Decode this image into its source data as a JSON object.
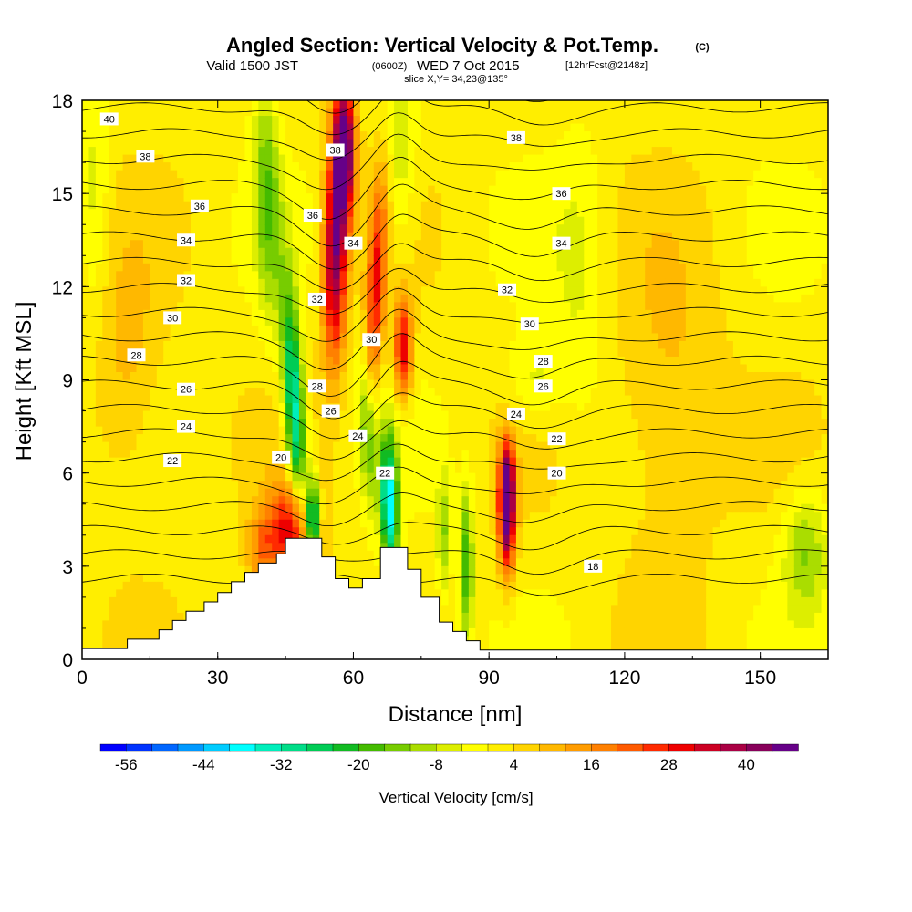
{
  "chart_data": {
    "type": "heatmap",
    "title": {
      "main": "Angled Section: Vertical Velocity & Pot.Temp.",
      "main_units": "(C)",
      "valid_prefix": "Valid 1500 JST",
      "valid_utc": "(0600Z)",
      "valid_date": "WED 7 Oct 2015",
      "forecast": "[12hrFcst@2148z]",
      "slice": "slice X,Y= 34,23@135°"
    },
    "xlabel": "Distance [nm]",
    "ylabel": "Height [Kft MSL]",
    "xlim": [
      0,
      165
    ],
    "ylim": [
      0,
      18
    ],
    "x_ticks": [
      "0",
      "30",
      "60",
      "90",
      "120",
      "150"
    ],
    "x_tick_values": [
      0,
      30,
      60,
      90,
      120,
      150
    ],
    "y_ticks": [
      "0",
      "3",
      "6",
      "9",
      "12",
      "15",
      "18"
    ],
    "y_tick_values": [
      0,
      3,
      6,
      9,
      12,
      15,
      18
    ],
    "colorbar": {
      "label": "Vertical Velocity [cm/s]",
      "tick_labels": [
        "-56",
        "-44",
        "-32",
        "-20",
        "-8",
        "4",
        "16",
        "28",
        "40"
      ],
      "tick_values": [
        -56,
        -44,
        -32,
        -20,
        -8,
        4,
        16,
        28,
        40
      ],
      "range": [
        -60,
        48
      ],
      "colors": [
        "#0000ff",
        "#0033ff",
        "#0066ff",
        "#0099ff",
        "#00ccff",
        "#00ffff",
        "#00eebb",
        "#00dd88",
        "#00cc55",
        "#11bb22",
        "#44bb00",
        "#77cc00",
        "#aadd00",
        "#ddee00",
        "#ffff00",
        "#ffee00",
        "#ffd400",
        "#ffb800",
        "#ff9c00",
        "#ff8000",
        "#ff5a00",
        "#ff2a00",
        "#ee0000",
        "#cc0022",
        "#aa0044",
        "#88005a",
        "#660088"
      ]
    },
    "terrain": [
      [
        0,
        0.35
      ],
      [
        10,
        0.35
      ],
      [
        10,
        0.65
      ],
      [
        17,
        0.65
      ],
      [
        17,
        0.95
      ],
      [
        20,
        0.95
      ],
      [
        20,
        1.25
      ],
      [
        23,
        1.25
      ],
      [
        23,
        1.55
      ],
      [
        27,
        1.55
      ],
      [
        27,
        1.85
      ],
      [
        30,
        1.85
      ],
      [
        30,
        2.15
      ],
      [
        33,
        2.15
      ],
      [
        33,
        2.5
      ],
      [
        36,
        2.5
      ],
      [
        36,
        2.8
      ],
      [
        39,
        2.8
      ],
      [
        39,
        3.1
      ],
      [
        43,
        3.1
      ],
      [
        43,
        3.4
      ],
      [
        45,
        3.4
      ],
      [
        45,
        3.9
      ],
      [
        53,
        3.9
      ],
      [
        53,
        3.3
      ],
      [
        56,
        3.3
      ],
      [
        56,
        2.6
      ],
      [
        59,
        2.6
      ],
      [
        59,
        2.3
      ],
      [
        62,
        2.3
      ],
      [
        62,
        2.6
      ],
      [
        66,
        2.6
      ],
      [
        66,
        3.6
      ],
      [
        72,
        3.6
      ],
      [
        72,
        2.9
      ],
      [
        75,
        2.9
      ],
      [
        75,
        2.0
      ],
      [
        79,
        2.0
      ],
      [
        79,
        1.2
      ],
      [
        82,
        1.2
      ],
      [
        82,
        0.9
      ],
      [
        85,
        0.9
      ],
      [
        85,
        0.6
      ],
      [
        88,
        0.6
      ],
      [
        88,
        0.3
      ],
      [
        165,
        0.3
      ],
      [
        165,
        0
      ],
      [
        0,
        0
      ]
    ],
    "updrafts": [
      {
        "x": 47,
        "y": 4.2,
        "sx": 5,
        "sy": 1.6,
        "value": 32,
        "tilt": 0
      },
      {
        "x": 56,
        "y": 13,
        "sx": 2.6,
        "sy": 3.5,
        "value": 40,
        "tilt": 0.08
      },
      {
        "x": 58,
        "y": 16.5,
        "sx": 2.4,
        "sy": 2.2,
        "value": 46,
        "tilt": 0
      },
      {
        "x": 65,
        "y": 12,
        "sx": 2.2,
        "sy": 4,
        "value": 26,
        "tilt": 0.35
      },
      {
        "x": 71,
        "y": 10,
        "sx": 2,
        "sy": 1.6,
        "value": 30,
        "tilt": 0
      },
      {
        "x": 94,
        "y": 4.6,
        "sx": 1.8,
        "sy": 1.8,
        "value": 46,
        "tilt": 0
      },
      {
        "x": 94,
        "y": 6,
        "sx": 1.6,
        "sy": 1.2,
        "value": 24,
        "tilt": 0
      },
      {
        "x": 40,
        "y": 3.5,
        "sx": 3.5,
        "sy": 1.4,
        "value": 16,
        "tilt": 0
      },
      {
        "x": 10,
        "y": 9,
        "sx": 8,
        "sy": 4,
        "value": 8,
        "tilt": 0
      },
      {
        "x": 130,
        "y": 8,
        "sx": 12,
        "sy": 5,
        "value": 8,
        "tilt": 0
      }
    ],
    "downdrafts": [
      {
        "x": 47,
        "y": 8,
        "sx": 2.2,
        "sy": 3.8,
        "value": -38,
        "tilt": -0.35
      },
      {
        "x": 41,
        "y": 15,
        "sx": 3,
        "sy": 4,
        "value": -16,
        "tilt": -0.2
      },
      {
        "x": 51,
        "y": 4.5,
        "sx": 1.5,
        "sy": 1.3,
        "value": -48,
        "tilt": 0
      },
      {
        "x": 68,
        "y": 5,
        "sx": 2,
        "sy": 2.2,
        "value": -40,
        "tilt": -0.15
      },
      {
        "x": 63,
        "y": 7.5,
        "sx": 2,
        "sy": 2.5,
        "value": -20,
        "tilt": -0.25
      },
      {
        "x": 85,
        "y": 3,
        "sx": 1.5,
        "sy": 2.5,
        "value": -22,
        "tilt": 0
      },
      {
        "x": 80,
        "y": 4,
        "sx": 1.5,
        "sy": 2,
        "value": -14,
        "tilt": 0
      },
      {
        "x": 70,
        "y": 16,
        "sx": 4,
        "sy": 3,
        "value": -10,
        "tilt": 0
      },
      {
        "x": 160,
        "y": 3.5,
        "sx": 5,
        "sy": 2,
        "value": -14,
        "tilt": 0
      },
      {
        "x": 110,
        "y": 12,
        "sx": 6,
        "sy": 5,
        "value": -6,
        "tilt": 0
      },
      {
        "x": 3,
        "y": 15,
        "sx": 3,
        "sy": 4,
        "value": -8,
        "tilt": 0
      },
      {
        "x": 100,
        "y": 9,
        "sx": 6,
        "sy": 1.5,
        "value": -8,
        "tilt": 0
      }
    ],
    "isentrope_levels": [
      18,
      19,
      20,
      21,
      22,
      23,
      24,
      25,
      26,
      27,
      28,
      29,
      30,
      31,
      32,
      33,
      34,
      35,
      36,
      37,
      38,
      39,
      40
    ],
    "isentrope_labels": [
      {
        "text": "40",
        "x": 6,
        "y": 17.4
      },
      {
        "text": "38",
        "x": 14,
        "y": 16.2
      },
      {
        "text": "36",
        "x": 26,
        "y": 14.6
      },
      {
        "text": "34",
        "x": 23,
        "y": 13.5
      },
      {
        "text": "32",
        "x": 23,
        "y": 12.2
      },
      {
        "text": "30",
        "x": 20,
        "y": 11.0
      },
      {
        "text": "28",
        "x": 12,
        "y": 9.8
      },
      {
        "text": "26",
        "x": 23,
        "y": 8.7
      },
      {
        "text": "24",
        "x": 23,
        "y": 7.5
      },
      {
        "text": "22",
        "x": 20,
        "y": 6.4
      },
      {
        "text": "38",
        "x": 56,
        "y": 16.4
      },
      {
        "text": "36",
        "x": 51,
        "y": 14.3
      },
      {
        "text": "34",
        "x": 60,
        "y": 13.4
      },
      {
        "text": "32",
        "x": 52,
        "y": 11.6
      },
      {
        "text": "30",
        "x": 64,
        "y": 10.3
      },
      {
        "text": "28",
        "x": 52,
        "y": 8.8
      },
      {
        "text": "26",
        "x": 55,
        "y": 8.0
      },
      {
        "text": "24",
        "x": 61,
        "y": 7.2
      },
      {
        "text": "22",
        "x": 67,
        "y": 6.0
      },
      {
        "text": "20",
        "x": 44,
        "y": 6.5
      },
      {
        "text": "38",
        "x": 96,
        "y": 16.8
      },
      {
        "text": "36",
        "x": 106,
        "y": 15.0
      },
      {
        "text": "34",
        "x": 106,
        "y": 13.4
      },
      {
        "text": "32",
        "x": 94,
        "y": 11.9
      },
      {
        "text": "30",
        "x": 99,
        "y": 10.8
      },
      {
        "text": "28",
        "x": 102,
        "y": 9.6
      },
      {
        "text": "26",
        "x": 102,
        "y": 8.8
      },
      {
        "text": "24",
        "x": 96,
        "y": 7.9
      },
      {
        "text": "22",
        "x": 105,
        "y": 7.1
      },
      {
        "text": "20",
        "x": 105,
        "y": 6.0
      },
      {
        "text": "18",
        "x": 113,
        "y": 3.0
      }
    ]
  }
}
